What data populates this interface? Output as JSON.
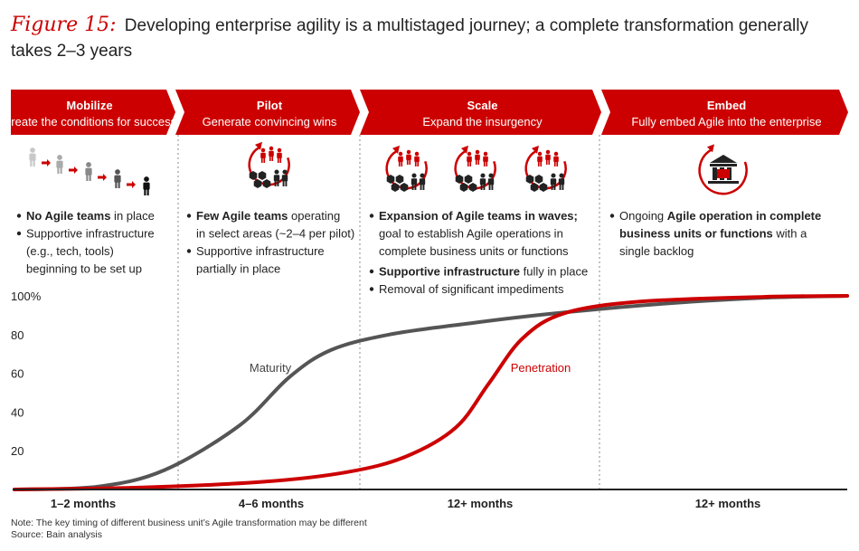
{
  "figure": {
    "number_label": "Figure 15:",
    "title": "Developing enterprise agility is a multistaged journey; a complete transformation generally takes 2–3 years"
  },
  "phases": [
    {
      "title": "Mobilize",
      "subtitle": "Create the conditions for success",
      "icon": "people-progression-icon",
      "bullets": [
        [
          {
            "text": "No Agile teams",
            "bold": true
          },
          {
            "text": " in place",
            "bold": false
          }
        ],
        [
          {
            "text": "Supportive infrastructure",
            "bold": false
          }
        ],
        [
          {
            "text": "(e.g., tech, tools)",
            "bold": false
          }
        ],
        [
          {
            "text": "beginning to be set up",
            "bold": false
          }
        ]
      ],
      "bullet_starts": [
        0,
        1
      ],
      "duration": "1–2 months"
    },
    {
      "title": "Pilot",
      "subtitle": "Generate convincing wins",
      "icon": "agile-team-cycle-icon",
      "bullets": [
        [
          {
            "text": "Few Agile teams",
            "bold": true
          },
          {
            "text": " operating",
            "bold": false
          }
        ],
        [
          {
            "text": "in select areas (~2–4 per pilot)",
            "bold": false
          }
        ],
        [
          {
            "text": "Supportive infrastructure",
            "bold": false
          }
        ],
        [
          {
            "text": "partially in place",
            "bold": false
          }
        ]
      ],
      "bullet_starts": [
        0,
        2
      ],
      "duration": "4–6 months"
    },
    {
      "title": "Scale",
      "subtitle": "Expand the insurgency",
      "icon": "agile-team-cycle-icon",
      "bullets": [
        [
          {
            "text": "Expansion of Agile teams in waves;",
            "bold": true
          }
        ],
        [
          {
            "text": "goal to establish Agile operations in",
            "bold": false
          }
        ],
        [
          {
            "text": "complete business units or functions",
            "bold": false
          }
        ],
        [
          {
            "text": "Supportive infrastructure",
            "bold": true
          },
          {
            "text": " fully in place",
            "bold": false
          }
        ],
        [
          {
            "text": "Removal of significant impediments",
            "bold": false
          }
        ]
      ],
      "bullet_starts": [
        0,
        3,
        4
      ],
      "duration": "12+ months"
    },
    {
      "title": "Embed",
      "subtitle": "Fully embed Agile into the enterprise",
      "icon": "enterprise-building-cycle-icon",
      "bullets": [
        [
          {
            "text": "Ongoing ",
            "bold": false
          },
          {
            "text": "Agile operation in complete",
            "bold": true
          }
        ],
        [
          {
            "text": "business units or functions",
            "bold": true
          },
          {
            "text": " with a",
            "bold": false
          }
        ],
        [
          {
            "text": "single backlog",
            "bold": false
          }
        ]
      ],
      "bullet_starts": [
        0
      ],
      "duration": "12+ months"
    }
  ],
  "chart_data": {
    "type": "line",
    "y_ticks": [
      "100%",
      "80",
      "60",
      "40",
      "20"
    ],
    "ylim": [
      0,
      100
    ],
    "xlim": [
      0,
      100
    ],
    "series": [
      {
        "name": "Maturity",
        "color": "#555555",
        "points": [
          [
            0,
            0
          ],
          [
            10,
            1.5
          ],
          [
            18,
            10
          ],
          [
            27,
            33
          ],
          [
            33,
            58
          ],
          [
            38,
            72
          ],
          [
            45,
            80
          ],
          [
            55,
            86
          ],
          [
            65,
            91
          ],
          [
            78,
            96
          ],
          [
            90,
            99
          ],
          [
            100,
            100
          ]
        ]
      },
      {
        "name": "Penetration",
        "color": "#cc0000",
        "points": [
          [
            0,
            0
          ],
          [
            15,
            1
          ],
          [
            30,
            4
          ],
          [
            40,
            9
          ],
          [
            47,
            17
          ],
          [
            53,
            32
          ],
          [
            57,
            55
          ],
          [
            61,
            78
          ],
          [
            66,
            91
          ],
          [
            75,
            97
          ],
          [
            90,
            99.5
          ],
          [
            100,
            100
          ]
        ]
      }
    ],
    "grid": false
  },
  "colors": {
    "accent": "#cc0000",
    "maturity": "#555555",
    "text": "#222222"
  },
  "notes": {
    "note": "Note: The key timing of different business unit’s Agile transformation may be different",
    "source": "Source: Bain analysis"
  }
}
